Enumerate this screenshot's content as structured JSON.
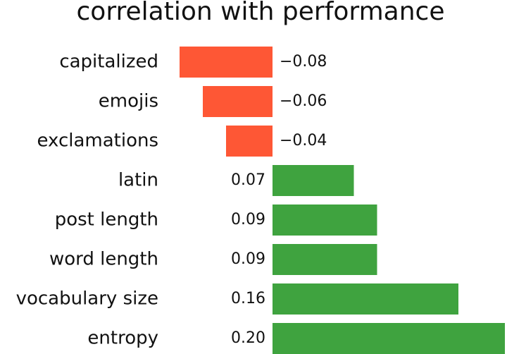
{
  "chart_data": {
    "type": "barh",
    "title": "correlation with performance",
    "categories": [
      "capitalized",
      "emojis",
      "exclamations",
      "latin",
      "post length",
      "word length",
      "vocabulary size",
      "entropy"
    ],
    "values": [
      -0.08,
      -0.06,
      -0.04,
      0.07,
      0.09,
      0.09,
      0.16,
      0.2
    ],
    "value_labels": [
      "−0.08",
      "−0.06",
      "−0.04",
      "0.07",
      "0.09",
      "0.09",
      "0.16",
      "0.20"
    ],
    "colors": [
      "#fe5735",
      "#fe5735",
      "#fe5735",
      "#3fa33f",
      "#3fa33f",
      "#3fa33f",
      "#3fa33f",
      "#3fa33f"
    ],
    "xlim": [
      -0.08,
      0.2
    ]
  }
}
